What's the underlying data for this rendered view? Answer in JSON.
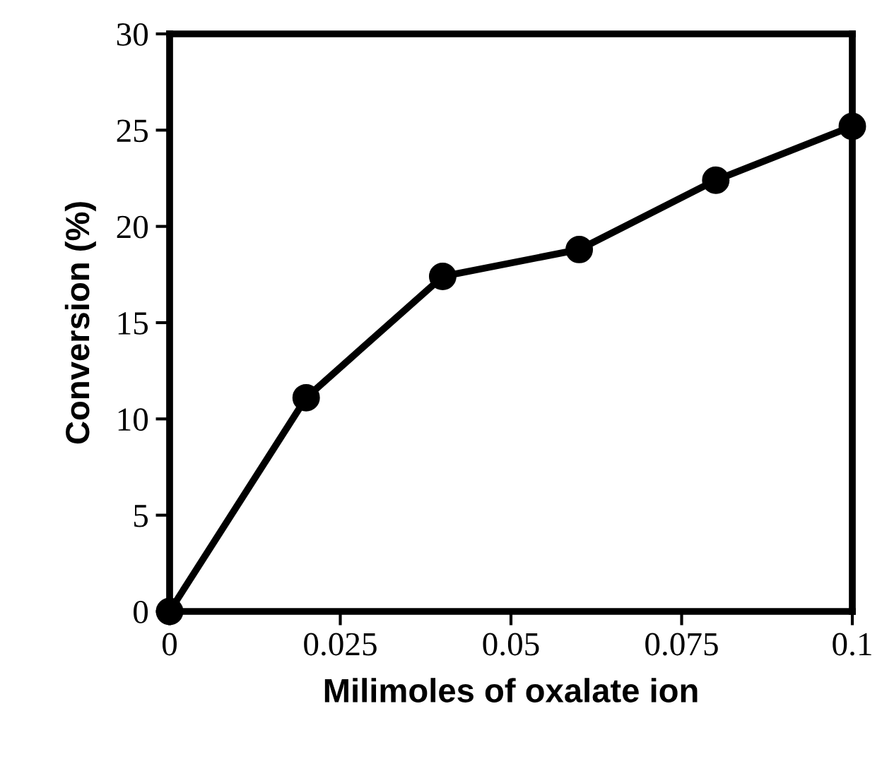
{
  "chart_data": {
    "type": "line",
    "xlabel": "Milimoles of oxalate ion",
    "ylabel": "Conversion (%)",
    "x": [
      0,
      0.02,
      0.04,
      0.06,
      0.08,
      0.1
    ],
    "series": [
      {
        "color": "#000000",
        "values": [
          0,
          11.1,
          17.4,
          18.8,
          22.4,
          25.2
        ]
      }
    ],
    "xlim": [
      0,
      0.1
    ],
    "xticks": [
      0,
      0.025,
      0.05,
      0.075,
      0.1
    ],
    "ylim": [
      0,
      30
    ],
    "yticks": [
      0,
      5,
      10,
      15,
      20,
      25,
      30
    ],
    "marker": "circle",
    "line_style": "solid",
    "grid": false,
    "legend": false
  }
}
